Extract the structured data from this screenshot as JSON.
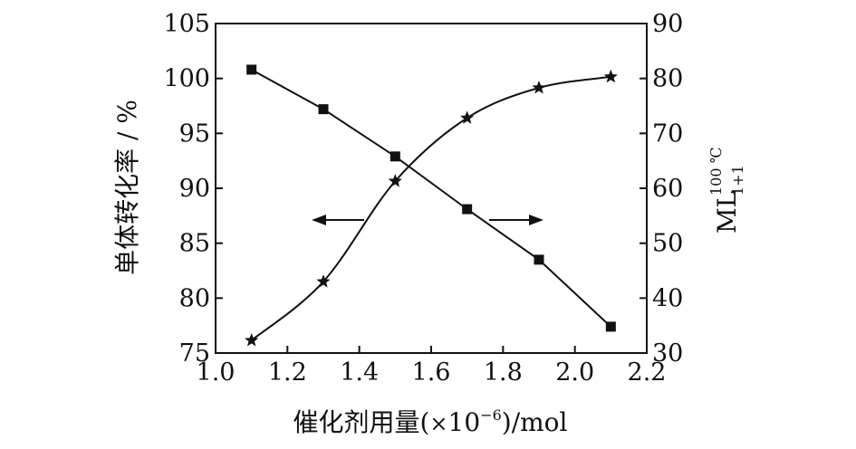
{
  "chart_data": {
    "type": "line",
    "title": "",
    "xlabel": "催化剂用量(×10⁻⁶)/mol",
    "xlabel_parts": {
      "main": "催化剂用量(",
      "times": "×",
      "base": "10",
      "exp": "−6",
      "tail": ")/mol"
    },
    "ylabel_left": "单体转化率 / %",
    "ylabel_right_parts": {
      "main": "ML",
      "sup": "100 ℃",
      "sub": "1+1"
    },
    "xlim": [
      1.0,
      2.2
    ],
    "ylim_left": [
      75,
      105
    ],
    "ylim_right": [
      30,
      90
    ],
    "x_ticks": [
      "1.0",
      "1.2",
      "1.4",
      "1.6",
      "1.8",
      "2.0",
      "2.2"
    ],
    "y_left_ticks": [
      "75",
      "80",
      "85",
      "90",
      "95",
      "100",
      "105"
    ],
    "y_right_ticks": [
      "30",
      "40",
      "50",
      "60",
      "70",
      "80",
      "90"
    ],
    "grid": false,
    "series": [
      {
        "axis": "left",
        "marker": "square",
        "x": [
          1.1,
          1.3,
          1.5,
          1.7,
          1.9,
          2.1
        ],
        "y": [
          100.8,
          97.2,
          92.9,
          88.1,
          83.5,
          77.4
        ]
      },
      {
        "axis": "right",
        "marker": "star",
        "x": [
          1.1,
          1.3,
          1.5,
          1.7,
          1.9,
          2.1
        ],
        "y": [
          32.3,
          43.0,
          61.3,
          72.8,
          78.3,
          80.3
        ]
      }
    ],
    "annotations": [
      {
        "type": "arrow",
        "direction": "left",
        "points_to": "left-axis"
      },
      {
        "type": "arrow",
        "direction": "right",
        "points_to": "right-axis"
      }
    ]
  }
}
